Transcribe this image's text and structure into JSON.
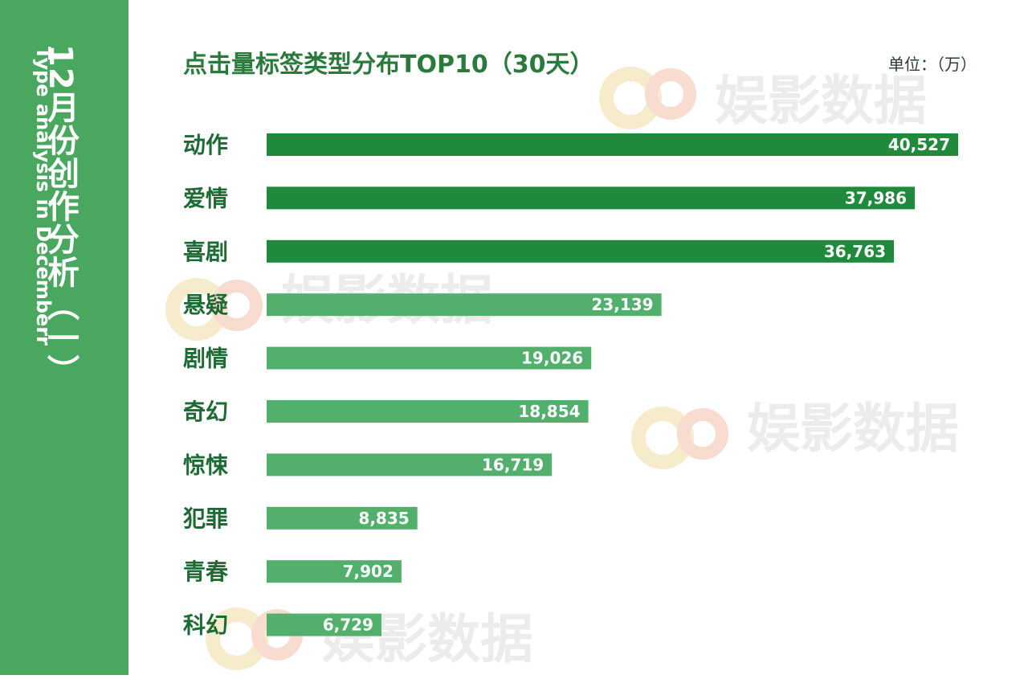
{
  "sidebar": {
    "title": "12月份创作分析（一）",
    "subtitle": "Type analysis in  Decemberr"
  },
  "watermark": "娱影数据",
  "colors": {
    "sidebar": "#4aa760",
    "bar_top": "#1f8a3c",
    "bar_rest": "#52b06c",
    "title": "#2a7a3c"
  },
  "chart_data": {
    "type": "bar",
    "orientation": "horizontal",
    "title": "点击量标签类型分布TOP10（30天）",
    "unit": "单位：（万）",
    "categories": [
      "动作",
      "爱情",
      "喜剧",
      "悬疑",
      "剧情",
      "奇幻",
      "惊悚",
      "犯罪",
      "青春",
      "科幻"
    ],
    "values": [
      40527,
      37986,
      36763,
      23139,
      19026,
      18854,
      16719,
      8835,
      7902,
      6729
    ],
    "value_labels": [
      "40,527",
      "37,986",
      "36,763",
      "23,139",
      "19,026",
      "18,854",
      "16,719",
      "8,835",
      "7,902",
      "6,729"
    ],
    "xlim": [
      0,
      40527
    ],
    "grid": false,
    "legend": "none"
  }
}
